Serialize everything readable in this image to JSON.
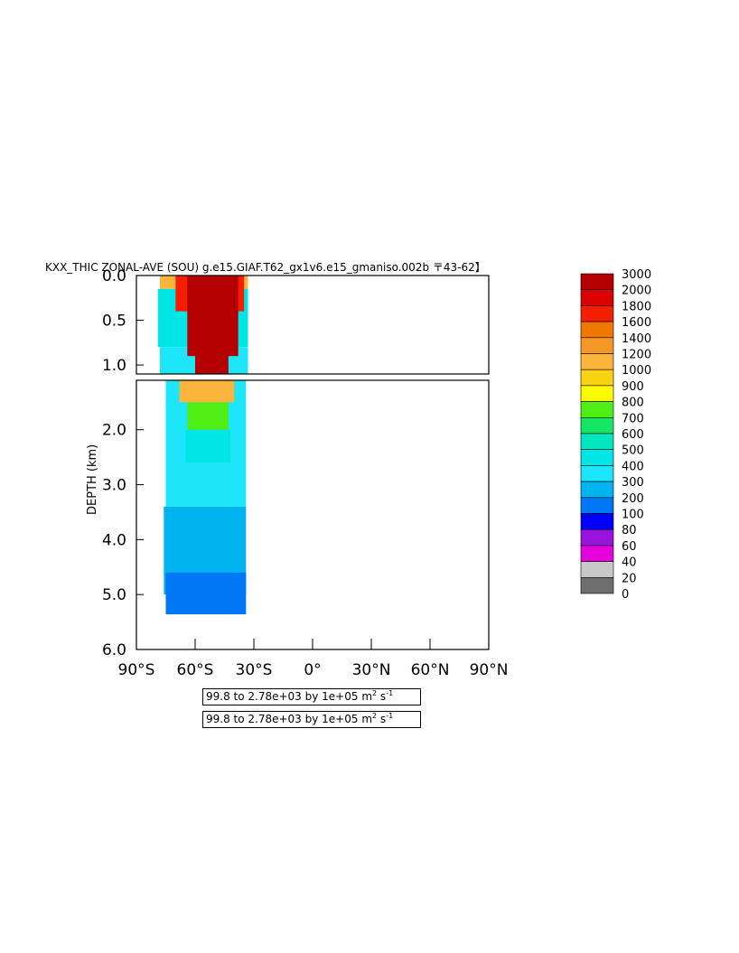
{
  "chart_data": {
    "type": "heatmap",
    "title": "KXX_THIC ZONAL-AVE (SOU) g.e15.GIAF.T62_gx1v6.e15_gmaniso.002b 〒43-62】",
    "ylabel": "DEPTH (km)",
    "xlabel": "",
    "x_ticks": [
      "90°S",
      "60°S",
      "30°S",
      "0°",
      "30°N",
      "60°N",
      "90°N"
    ],
    "x_tick_values": [
      -90,
      -60,
      -30,
      0,
      30,
      60,
      90
    ],
    "xlim": [
      -90,
      90
    ],
    "y_ticks_upper": [
      "0.0",
      "0.5",
      "1.0"
    ],
    "y_ticks_lower": [
      "2.0",
      "3.0",
      "4.0",
      "5.0",
      "6.0"
    ],
    "ylim_upper": [
      0,
      1.1
    ],
    "ylim_lower": [
      1.1,
      6.0
    ],
    "y_scale": "split: stretched upper panel 0-1.1 km, lower panel 1.1-6.0 km",
    "legend_placement": "right",
    "grid": false,
    "colorbar": {
      "labels": [
        "3000",
        "2000",
        "1800",
        "1600",
        "1400",
        "1200",
        "1000",
        "900",
        "800",
        "700",
        "600",
        "500",
        "400",
        "300",
        "200",
        "100",
        "80",
        "60",
        "40",
        "20",
        "0"
      ],
      "colors": [
        "#b40000",
        "#dc0000",
        "#f51e00",
        "#f07800",
        "#f59628",
        "#fab43c",
        "#fad214",
        "#fafa00",
        "#50ee14",
        "#14e664",
        "#00e6be",
        "#00e6e6",
        "#1ee6fa",
        "#00b4f0",
        "#0078f5",
        "#0000ff",
        "#9614dc",
        "#e600dc",
        "#c8c8c8",
        "#6e6e6e"
      ]
    },
    "field_regions": [
      {
        "lat_min": -78,
        "lat_max": -33,
        "depth_top": 0.0,
        "depth_bottom": 0.15,
        "value": 1200
      },
      {
        "lat_min": -79,
        "lat_max": -33,
        "depth_top": 0.15,
        "depth_bottom": 0.8,
        "value": 500
      },
      {
        "lat_min": -78,
        "lat_max": -33,
        "depth_top": 0.8,
        "depth_bottom": 1.1,
        "value": 350
      },
      {
        "lat_min": -75,
        "lat_max": -34,
        "depth_top": 1.1,
        "depth_bottom": 3.4,
        "value": 350
      },
      {
        "lat_min": -76,
        "lat_max": -34,
        "depth_top": 3.4,
        "depth_bottom": 5.0,
        "value": 250
      },
      {
        "lat_min": -75,
        "lat_max": -34,
        "depth_top": 4.6,
        "depth_bottom": 5.36,
        "value": 150
      },
      {
        "lat_min": -70,
        "lat_max": -35,
        "depth_top": 0.0,
        "depth_bottom": 0.4,
        "value": 1700
      },
      {
        "lat_min": -64,
        "lat_max": -38,
        "depth_top": 0.0,
        "depth_bottom": 0.9,
        "value": 2500
      },
      {
        "lat_min": -60,
        "lat_max": -43,
        "depth_top": 0.5,
        "depth_bottom": 1.1,
        "value": 2500
      },
      {
        "lat_min": -68,
        "lat_max": -40,
        "depth_top": 1.1,
        "depth_bottom": 1.5,
        "value": 1100
      },
      {
        "lat_min": -64,
        "lat_max": -43,
        "depth_top": 1.5,
        "depth_bottom": 2.0,
        "value": 750
      },
      {
        "lat_min": -65,
        "lat_max": -42,
        "depth_top": 2.0,
        "depth_bottom": 2.6,
        "value": 500
      }
    ]
  },
  "range_labels": [
    {
      "main": "99.8 to 2.78e+03 by 1e+05 m",
      "sup1": "2",
      "mid": " s",
      "sup2": "-1"
    },
    {
      "main": "99.8 to 2.78e+03 by 1e+05 m",
      "sup1": "2",
      "mid": " s",
      "sup2": "-1"
    }
  ]
}
